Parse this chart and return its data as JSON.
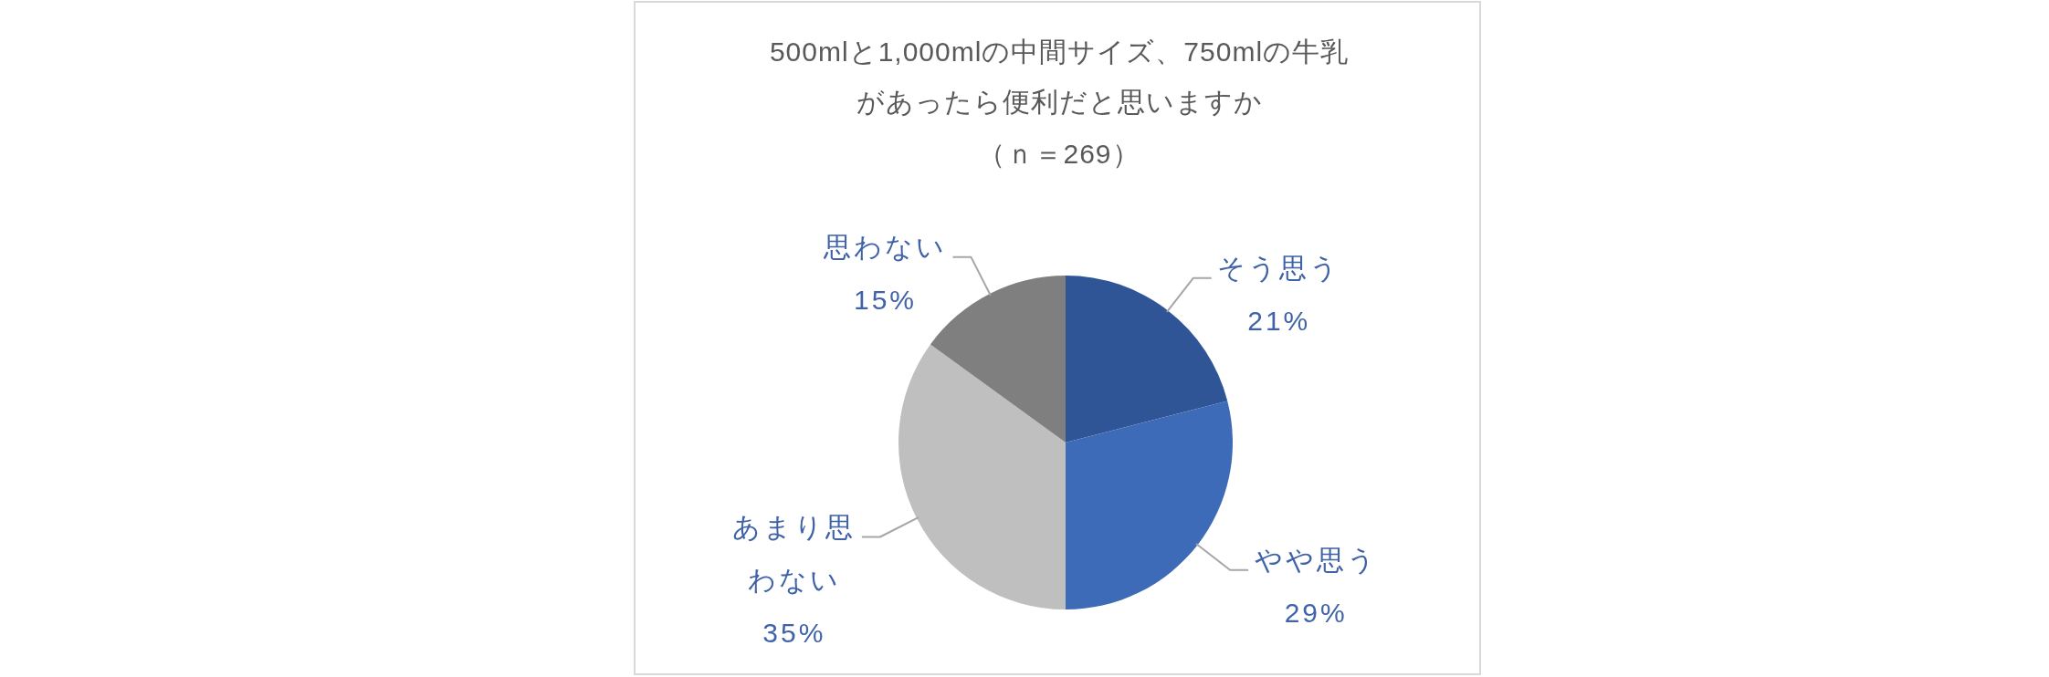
{
  "chart_data": {
    "type": "pie",
    "title": "500mlと1,000mlの中間サイズ、750mlの牛乳があったら便利だと思いますか",
    "subtitle": "（ｎ＝269）",
    "categories": [
      "そう思う",
      "やや思う",
      "あまり思わない",
      "思わない"
    ],
    "values": [
      21,
      29,
      35,
      15
    ],
    "colors": [
      "#2f5597",
      "#3e6bb8",
      "#bfbfbf",
      "#7f7f7f"
    ],
    "value_labels": [
      "21%",
      "29%",
      "35%",
      "15%"
    ]
  }
}
